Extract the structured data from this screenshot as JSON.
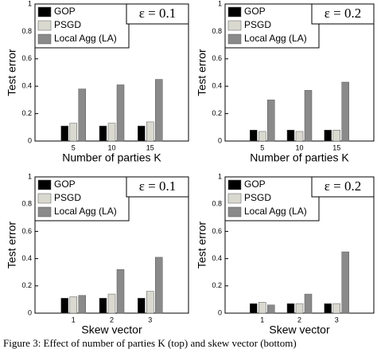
{
  "chart_data": [
    {
      "type": "bar",
      "ylabel": "Test error",
      "xlabel": "Number of parties K",
      "annotation": "ε = 0.1",
      "categories": [
        "5",
        "10",
        "15"
      ],
      "ylim": [
        0,
        1
      ],
      "yticks": [
        0,
        0.2,
        0.4,
        0.6,
        0.8,
        1
      ],
      "series": [
        {
          "name": "GOP",
          "color": "#000000",
          "values": [
            0.11,
            0.11,
            0.11
          ]
        },
        {
          "name": "PSGD",
          "color": "#d9d9d0",
          "values": [
            0.13,
            0.13,
            0.14
          ]
        },
        {
          "name": "Local Agg (LA)",
          "color": "#8a8a8a",
          "values": [
            0.38,
            0.41,
            0.45
          ]
        }
      ]
    },
    {
      "type": "bar",
      "ylabel": "Test error",
      "xlabel": "Number of parties K",
      "annotation": "ε = 0.2",
      "categories": [
        "5",
        "10",
        "15"
      ],
      "ylim": [
        0,
        1
      ],
      "yticks": [
        0,
        0.2,
        0.4,
        0.6,
        0.8,
        1
      ],
      "series": [
        {
          "name": "GOP",
          "color": "#000000",
          "values": [
            0.08,
            0.08,
            0.08
          ]
        },
        {
          "name": "PSGD",
          "color": "#d9d9d0",
          "values": [
            0.07,
            0.07,
            0.08
          ]
        },
        {
          "name": "Local Agg (LA)",
          "color": "#8a8a8a",
          "values": [
            0.3,
            0.37,
            0.43
          ]
        }
      ]
    },
    {
      "type": "bar",
      "ylabel": "Test error",
      "xlabel": "Skew vector",
      "annotation": "ε = 0.1",
      "categories": [
        "1",
        "2",
        "3"
      ],
      "ylim": [
        0,
        1
      ],
      "yticks": [
        0,
        0.2,
        0.4,
        0.6,
        0.8,
        1
      ],
      "series": [
        {
          "name": "GOP",
          "color": "#000000",
          "values": [
            0.11,
            0.11,
            0.11
          ]
        },
        {
          "name": "PSGD",
          "color": "#d9d9d0",
          "values": [
            0.12,
            0.14,
            0.16
          ]
        },
        {
          "name": "Local Agg (LA)",
          "color": "#8a8a8a",
          "values": [
            0.13,
            0.32,
            0.41
          ]
        }
      ]
    },
    {
      "type": "bar",
      "ylabel": "Test error",
      "xlabel": "Skew vector",
      "annotation": "ε = 0.2",
      "categories": [
        "1",
        "2",
        "3"
      ],
      "ylim": [
        0,
        1
      ],
      "yticks": [
        0,
        0.2,
        0.4,
        0.6,
        0.8,
        1
      ],
      "series": [
        {
          "name": "GOP",
          "color": "#000000",
          "values": [
            0.07,
            0.07,
            0.07
          ]
        },
        {
          "name": "PSGD",
          "color": "#d9d9d0",
          "values": [
            0.08,
            0.07,
            0.07
          ]
        },
        {
          "name": "Local Agg (LA)",
          "color": "#8a8a8a",
          "values": [
            0.06,
            0.14,
            0.45
          ]
        }
      ]
    }
  ],
  "caption": "Figure 3: Effect of number of parties K (top) and skew vector (bottom)"
}
